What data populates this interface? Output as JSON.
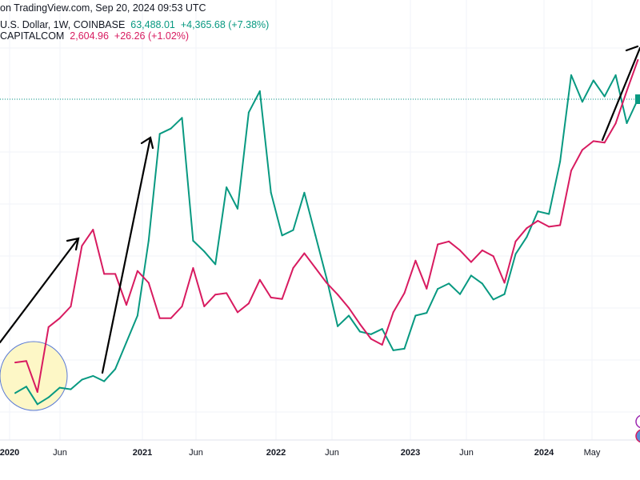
{
  "header": {
    "attribution": "on TradingView.com, Sep 20, 2024 09:53 UTC",
    "series1": {
      "label": "U.S. Dollar, 1W, COINBASE",
      "price": "63,488.01",
      "change": "+4,365.68 (+7.38%)"
    },
    "series2": {
      "label": "CAPITALCOM",
      "price": "2,604.96",
      "change": "+26.26 (+1.02%)"
    }
  },
  "colors": {
    "series1": "#089981",
    "series2": "#d81b60",
    "highlight_circle": "#fdf7c6",
    "annotation": "#000000",
    "grid": "#f0f3fa"
  },
  "icons": [
    "compare-symbol-icon",
    "flag-icon"
  ],
  "chart_data": {
    "type": "line",
    "x_ticks": [
      "2020",
      "Jun",
      "2021",
      "Jun",
      "2022",
      "Jun",
      "2023",
      "Jun",
      "2024",
      "May"
    ],
    "x": [
      "2020-01",
      "2020-02",
      "2020-03",
      "2020-04",
      "2020-05",
      "2020-06",
      "2020-07",
      "2020-08",
      "2020-09",
      "2020-10",
      "2020-11",
      "2020-12",
      "2021-01",
      "2021-02",
      "2021-03",
      "2021-04",
      "2021-05",
      "2021-06",
      "2021-07",
      "2021-08",
      "2021-09",
      "2021-10",
      "2021-11",
      "2021-12",
      "2022-01",
      "2022-02",
      "2022-03",
      "2022-04",
      "2022-05",
      "2022-06",
      "2022-07",
      "2022-08",
      "2022-09",
      "2022-10",
      "2022-11",
      "2022-12",
      "2023-01",
      "2023-02",
      "2023-03",
      "2023-04",
      "2023-05",
      "2023-06",
      "2023-07",
      "2023-08",
      "2023-09",
      "2023-10",
      "2023-11",
      "2023-12",
      "2024-01",
      "2024-02",
      "2024-03",
      "2024-04",
      "2024-05",
      "2024-06",
      "2024-07",
      "2024-08",
      "2024-09"
    ],
    "series": [
      {
        "name": "U.S. Dollar, 1W, COINBASE",
        "color": "#089981",
        "values": [
          8500,
          9700,
          6400,
          7700,
          9500,
          9200,
          11000,
          11700,
          10700,
          13000,
          18000,
          23000,
          37000,
          57000,
          58000,
          60000,
          37000,
          35000,
          32600,
          47000,
          43000,
          61000,
          65000,
          46000,
          38000,
          39000,
          46000,
          38000,
          30000,
          21000,
          23000,
          20000,
          19500,
          20500,
          16500,
          16800,
          23000,
          23500,
          28000,
          29000,
          27000,
          30500,
          29000,
          26000,
          27000,
          34500,
          37700,
          42500,
          42000,
          51800,
          68000,
          63000,
          67000,
          64000,
          68000,
          59000,
          63488
        ]
      },
      {
        "name": "CAPITALCOM",
        "color": "#d81b60",
        "values": [
          1580,
          1585,
          1480,
          1700,
          1730,
          1770,
          1975,
          2030,
          1880,
          1880,
          1775,
          1890,
          1850,
          1730,
          1730,
          1770,
          1900,
          1770,
          1810,
          1815,
          1750,
          1780,
          1860,
          1800,
          1795,
          1900,
          1950,
          1900,
          1850,
          1810,
          1765,
          1710,
          1660,
          1640,
          1750,
          1815,
          1925,
          1830,
          1980,
          1990,
          1960,
          1920,
          1960,
          1940,
          1850,
          1990,
          2035,
          2060,
          2040,
          2045,
          2230,
          2300,
          2330,
          2325,
          2390,
          2500,
          2605
        ]
      }
    ],
    "last_price_line": 63488.01,
    "grid": true,
    "annotations": [
      "arrow",
      "arrow",
      "arrow",
      "highlight-circle"
    ]
  }
}
